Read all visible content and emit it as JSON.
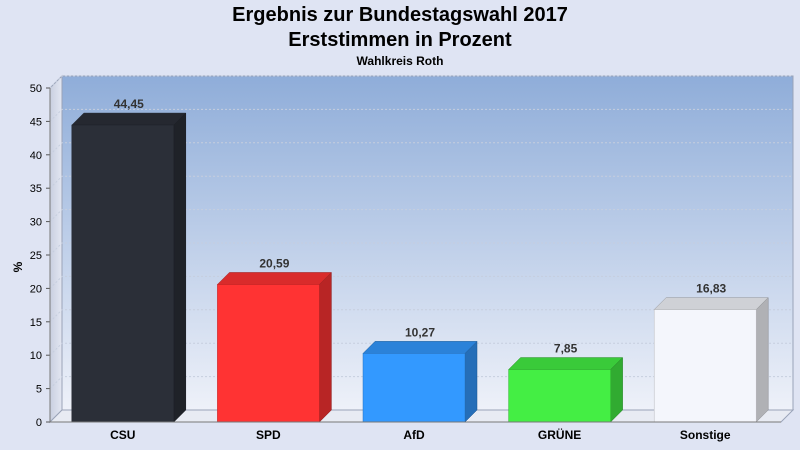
{
  "title": "Ergebnis zur Bundestagswahl 2017",
  "subtitle": "Erststimmen in Prozent",
  "subtitle2": "Wahlkreis Roth",
  "chart_data": {
    "type": "bar",
    "categories": [
      "CSU",
      "SPD",
      "AfD",
      "GRÜNE",
      "Sonstige"
    ],
    "values": [
      44.45,
      20.59,
      10.27,
      7.85,
      16.83
    ],
    "value_labels": [
      "44,45",
      "20,59",
      "10,27",
      "7,85",
      "16,83"
    ],
    "colors": [
      "#2b2f38",
      "#ff3333",
      "#3399ff",
      "#44ee44",
      "#f4f6fc"
    ],
    "ylabel": "%",
    "xlabel": "",
    "ylim": [
      0,
      50
    ],
    "yticks": [
      0,
      5,
      10,
      15,
      20,
      25,
      30,
      35,
      40,
      45,
      50
    ],
    "grid": true
  }
}
